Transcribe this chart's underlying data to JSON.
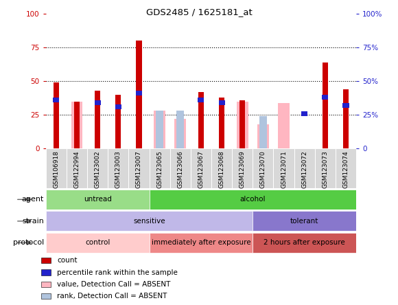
{
  "title": "GDS2485 / 1625181_at",
  "samples": [
    "GSM106918",
    "GSM122994",
    "GSM123002",
    "GSM123003",
    "GSM123007",
    "GSM123065",
    "GSM123066",
    "GSM123067",
    "GSM123068",
    "GSM123069",
    "GSM123070",
    "GSM123071",
    "GSM123072",
    "GSM123073",
    "GSM123074"
  ],
  "count_values": [
    49,
    35,
    43,
    40,
    80,
    0,
    0,
    42,
    38,
    36,
    0,
    0,
    0,
    64,
    44
  ],
  "percentile_values": [
    36,
    0,
    34,
    31,
    41,
    0,
    0,
    36,
    34,
    0,
    0,
    0,
    26,
    38,
    32
  ],
  "absent_value_values": [
    0,
    35,
    0,
    0,
    0,
    28,
    22,
    0,
    0,
    35,
    18,
    34,
    0,
    0,
    0
  ],
  "absent_rank_values": [
    0,
    0,
    0,
    0,
    0,
    28,
    28,
    0,
    0,
    0,
    24,
    0,
    0,
    0,
    0
  ],
  "ylim": [
    0,
    100
  ],
  "yticks": [
    0,
    25,
    50,
    75,
    100
  ],
  "count_color": "#cc0000",
  "percentile_color": "#2222cc",
  "absent_value_color": "#ffb6c1",
  "absent_rank_color": "#b0c4de",
  "agent_groups": [
    {
      "label": "untread",
      "start": 0,
      "end": 5,
      "color": "#99dd88"
    },
    {
      "label": "alcohol",
      "start": 5,
      "end": 15,
      "color": "#55cc44"
    }
  ],
  "strain_groups": [
    {
      "label": "sensitive",
      "start": 0,
      "end": 10,
      "color": "#c0b8e8"
    },
    {
      "label": "tolerant",
      "start": 10,
      "end": 15,
      "color": "#8877cc"
    }
  ],
  "protocol_groups": [
    {
      "label": "control",
      "start": 0,
      "end": 5,
      "color": "#ffcccc"
    },
    {
      "label": "immediately after exposure",
      "start": 5,
      "end": 10,
      "color": "#ee8888"
    },
    {
      "label": "2 hours after exposure",
      "start": 10,
      "end": 15,
      "color": "#cc5555"
    }
  ],
  "legend_items": [
    {
      "label": "count",
      "color": "#cc0000"
    },
    {
      "label": "percentile rank within the sample",
      "color": "#2222cc"
    },
    {
      "label": "value, Detection Call = ABSENT",
      "color": "#ffb6c1"
    },
    {
      "label": "rank, Detection Call = ABSENT",
      "color": "#b0c4de"
    }
  ],
  "tick_color_left": "#cc0000",
  "tick_color_right": "#2222cc",
  "label_rows": [
    "agent",
    "strain",
    "protocol"
  ]
}
